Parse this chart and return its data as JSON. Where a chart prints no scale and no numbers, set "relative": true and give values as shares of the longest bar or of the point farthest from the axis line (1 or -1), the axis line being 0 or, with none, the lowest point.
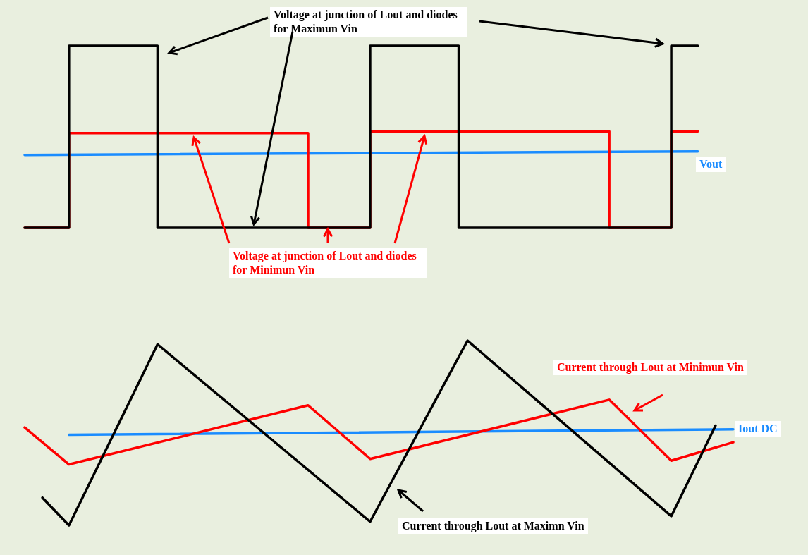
{
  "chart_data": [
    {
      "type": "line",
      "relative": true,
      "categories": [
        null,
        null,
        null,
        null,
        null,
        null,
        null,
        null,
        null,
        null,
        null,
        null,
        null,
        null,
        null,
        null,
        null,
        null,
        null,
        null,
        null,
        null,
        null,
        null,
        null,
        null,
        null,
        null,
        null,
        null,
        null,
        null,
        null,
        null,
        null,
        null,
        null,
        null,
        null,
        null,
        null,
        null,
        null,
        null,
        null,
        null,
        null,
        null,
        null,
        null,
        null,
        null,
        null,
        null,
        null,
        null,
        null,
        null,
        null,
        null,
        null,
        null,
        null,
        null,
        null,
        null,
        null,
        null,
        null,
        null,
        null,
        null,
        null,
        null,
        null,
        null,
        null,
        null,
        null,
        null,
        null
      ],
      "series": [
        {
          "name": "Voltage at junction of Lout and diodes for Maximun Vin",
          "type": "step",
          "color": "#000000",
          "values": [
            0,
            null,
            null,
            null,
            null,
            1,
            null,
            null,
            null,
            null,
            null,
            null,
            null,
            null,
            null,
            0,
            null,
            null,
            null,
            null,
            null,
            null,
            null,
            null,
            null,
            null,
            null,
            null,
            null,
            null,
            null,
            null,
            null,
            null,
            null,
            null,
            null,
            null,
            null,
            1,
            null,
            null,
            null,
            null,
            null,
            null,
            null,
            null,
            null,
            0,
            null,
            null,
            null,
            null,
            null,
            null,
            null,
            null,
            null,
            null,
            null,
            null,
            null,
            null,
            null,
            null,
            null,
            null,
            null,
            null,
            null,
            null,
            null,
            1,
            null,
            null,
            1,
            null,
            null,
            null,
            null
          ]
        },
        {
          "name": "Voltage at junction of Lout and diodes for Minimun Vin",
          "type": "step",
          "color": "#ff0000",
          "values": [
            0,
            null,
            null,
            null,
            null,
            0.52,
            null,
            null,
            null,
            null,
            null,
            null,
            null,
            null,
            null,
            null,
            null,
            null,
            null,
            null,
            null,
            null,
            null,
            null,
            null,
            null,
            null,
            null,
            null,
            null,
            null,
            null,
            0,
            null,
            null,
            null,
            null,
            null,
            null,
            0.53,
            null,
            null,
            null,
            null,
            null,
            null,
            null,
            null,
            null,
            null,
            null,
            null,
            null,
            null,
            null,
            null,
            null,
            null,
            null,
            null,
            null,
            null,
            null,
            null,
            null,
            null,
            0,
            null,
            null,
            null,
            null,
            null,
            null,
            0.53,
            null,
            null,
            0.53,
            null,
            null,
            null,
            null
          ]
        },
        {
          "name": "Vout",
          "color": "#1a8cff",
          "values": [
            0.4,
            null,
            null,
            null,
            null,
            null,
            null,
            null,
            null,
            null,
            null,
            null,
            null,
            null,
            null,
            null,
            null,
            null,
            null,
            null,
            null,
            null,
            null,
            null,
            null,
            null,
            null,
            null,
            null,
            null,
            null,
            null,
            null,
            null,
            null,
            null,
            null,
            null,
            null,
            null,
            null,
            null,
            null,
            null,
            null,
            null,
            null,
            null,
            null,
            null,
            null,
            null,
            null,
            null,
            null,
            null,
            null,
            null,
            null,
            null,
            null,
            null,
            null,
            null,
            null,
            null,
            null,
            null,
            null,
            null,
            null,
            null,
            null,
            null,
            null,
            null,
            0.42,
            null,
            null,
            null,
            null
          ]
        }
      ]
    },
    {
      "type": "line",
      "relative": true,
      "categories": [
        null,
        null,
        null,
        null,
        null,
        null,
        null,
        null,
        null,
        null,
        null,
        null,
        null,
        null,
        null,
        null,
        null,
        null,
        null,
        null,
        null,
        null,
        null,
        null,
        null,
        null,
        null,
        null,
        null,
        null,
        null,
        null,
        null,
        null,
        null,
        null,
        null,
        null,
        null,
        null,
        null,
        null,
        null,
        null,
        null,
        null,
        null,
        null,
        null,
        null,
        null,
        null,
        null,
        null,
        null,
        null,
        null,
        null,
        null,
        null,
        null,
        null,
        null,
        null,
        null,
        null,
        null,
        null,
        null,
        null,
        null,
        null,
        null,
        null,
        null,
        null,
        null,
        null,
        null,
        null,
        null
      ],
      "series": [
        {
          "name": "Current through Lout at Maximn Vin",
          "color": "#000000",
          "values": [
            null,
            null,
            0.15,
            null,
            null,
            0,
            null,
            null,
            null,
            null,
            null,
            null,
            null,
            null,
            null,
            0.98,
            null,
            null,
            null,
            null,
            null,
            null,
            null,
            null,
            null,
            null,
            null,
            null,
            null,
            null,
            null,
            null,
            null,
            null,
            null,
            null,
            null,
            null,
            null,
            0.02,
            null,
            null,
            null,
            null,
            null,
            null,
            null,
            null,
            null,
            null,
            1,
            null,
            null,
            null,
            null,
            null,
            null,
            null,
            null,
            null,
            null,
            null,
            null,
            null,
            null,
            null,
            null,
            null,
            null,
            null,
            null,
            null,
            null,
            0.05,
            null,
            null,
            null,
            null,
            0.54,
            null,
            null
          ]
        },
        {
          "name": "Current through Lout at Minimun Vin",
          "color": "#ff0000",
          "values": [
            0.53,
            null,
            null,
            null,
            null,
            0.33,
            null,
            null,
            null,
            null,
            null,
            null,
            null,
            null,
            null,
            null,
            null,
            null,
            null,
            null,
            null,
            null,
            null,
            null,
            null,
            null,
            null,
            null,
            null,
            null,
            null,
            null,
            0.65,
            null,
            null,
            null,
            null,
            null,
            null,
            0.36,
            null,
            null,
            null,
            null,
            null,
            null,
            null,
            null,
            null,
            null,
            null,
            null,
            null,
            null,
            null,
            null,
            null,
            null,
            null,
            null,
            null,
            null,
            null,
            null,
            null,
            null,
            0.68,
            null,
            null,
            null,
            null,
            null,
            null,
            0.35,
            null,
            null,
            null,
            null,
            null,
            null,
            0.45
          ]
        },
        {
          "name": "Iout DC",
          "color": "#1a8cff",
          "values": [
            null,
            null,
            null,
            null,
            null,
            0.49,
            null,
            null,
            null,
            null,
            null,
            null,
            null,
            null,
            null,
            null,
            null,
            null,
            null,
            null,
            null,
            null,
            null,
            null,
            null,
            null,
            null,
            null,
            null,
            null,
            null,
            null,
            null,
            null,
            null,
            null,
            null,
            null,
            null,
            null,
            null,
            null,
            null,
            null,
            null,
            null,
            null,
            null,
            null,
            null,
            null,
            null,
            null,
            null,
            null,
            null,
            null,
            null,
            null,
            null,
            null,
            null,
            null,
            null,
            null,
            null,
            null,
            null,
            null,
            null,
            null,
            null,
            null,
            null,
            null,
            null,
            null,
            null,
            null,
            null,
            0.52
          ]
        }
      ]
    }
  ]
}
